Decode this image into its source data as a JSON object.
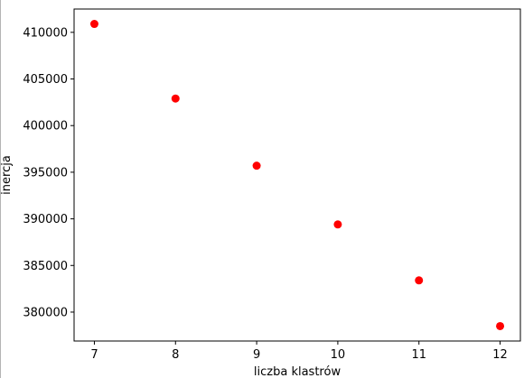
{
  "chart_data": {
    "type": "scatter",
    "title": "",
    "xlabel": "liczba klastrów",
    "ylabel": "inercja",
    "x": [
      7,
      8,
      9,
      10,
      11,
      12
    ],
    "y": [
      410900,
      402900,
      395700,
      389400,
      383400,
      378500
    ],
    "xticks": [
      "7",
      "8",
      "9",
      "10",
      "11",
      "12"
    ],
    "yticks": [
      "380000",
      "385000",
      "390000",
      "395000",
      "400000",
      "405000",
      "410000"
    ],
    "xlim": [
      6.75,
      12.25
    ],
    "ylim": [
      376900,
      412500
    ],
    "marker_color": "#ff0000",
    "grid": false,
    "legend": false
  }
}
